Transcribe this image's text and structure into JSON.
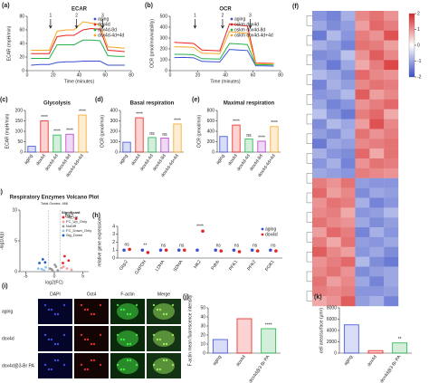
{
  "chart_data": [
    {
      "label": "(a)",
      "type": "line",
      "title": "ECAR",
      "xlabel": "Time (minutes)",
      "ylabel": "ECAR (mpH/min)",
      "x": [
        3,
        10,
        17,
        23,
        30,
        36,
        43,
        49,
        56,
        62,
        69,
        75
      ],
      "xlim": [
        0,
        80
      ],
      "xticks": [
        0,
        20,
        40,
        60,
        80
      ],
      "ylim": [
        0,
        80
      ],
      "yticks": [
        0,
        20,
        40,
        60,
        80
      ],
      "legend": "upper right",
      "annotations": [
        {
          "text": "1",
          "x": 18
        },
        {
          "text": "2",
          "x": 38
        },
        {
          "text": "3",
          "x": 58
        }
      ],
      "series": [
        {
          "name": "aging",
          "color": "#3b4fd6",
          "values": [
            8,
            9,
            9,
            12,
            13,
            13,
            14,
            14,
            14,
            8,
            8,
            8
          ]
        },
        {
          "name": "dox4d",
          "color": "#e8231f",
          "values": [
            25,
            25,
            25,
            50,
            52,
            52,
            60,
            62,
            61,
            30,
            29,
            28
          ]
        },
        {
          "name": "dox4d-8d",
          "color": "#22b14c",
          "values": [
            18,
            18,
            18,
            38,
            38,
            38,
            45,
            45,
            44,
            22,
            21,
            21
          ]
        },
        {
          "name": "dox4d-4d+4d",
          "color": "#f5a623",
          "values": [
            30,
            30,
            30,
            58,
            60,
            60,
            72,
            70,
            68,
            35,
            34,
            33
          ]
        }
      ]
    },
    {
      "label": "(b)",
      "type": "line",
      "title": "OCR",
      "xlabel": "Time (minutes)",
      "ylabel": "OCR (pmol/min/viability)",
      "x": [
        3,
        10,
        17,
        23,
        30,
        36,
        43,
        49,
        56,
        62,
        69,
        75
      ],
      "xlim": [
        0,
        80
      ],
      "xticks": [
        0,
        20,
        40,
        60,
        80
      ],
      "ylim": [
        0,
        500
      ],
      "yticks": [
        0,
        100,
        200,
        300,
        400,
        500
      ],
      "legend": "upper right",
      "annotations": [
        {
          "text": "1",
          "x": 18
        },
        {
          "text": "2",
          "x": 38
        },
        {
          "text": "3",
          "x": 58
        }
      ],
      "series": [
        {
          "name": "aging",
          "color": "#3b4fd6",
          "values": [
            120,
            122,
            118,
            85,
            82,
            80,
            195,
            190,
            185,
            45,
            44,
            42
          ]
        },
        {
          "name": "oskm dox4d",
          "color": "#e8231f",
          "values": [
            260,
            255,
            250,
            190,
            185,
            182,
            430,
            420,
            410,
            70,
            68,
            66
          ]
        },
        {
          "name": "oskm dox4d-8d",
          "color": "#22b14c",
          "values": [
            150,
            150,
            146,
            110,
            108,
            106,
            250,
            246,
            240,
            55,
            54,
            52
          ]
        },
        {
          "name": "oskm dox4d-4d+4d",
          "color": "#f5a623",
          "values": [
            220,
            218,
            215,
            160,
            158,
            155,
            360,
            350,
            345,
            65,
            63,
            62
          ]
        }
      ]
    },
    {
      "label": "(c)",
      "type": "bar",
      "title": "Glycolysis",
      "ylabel": "ECAR (mpH/min)",
      "categories": [
        "aging",
        "dox4d",
        "dox4d-4d",
        "dox4d-8d",
        "dox4d-4d+4d"
      ],
      "values": [
        28,
        150,
        82,
        86,
        178
      ],
      "colors": [
        "#3b4fd6",
        "#e8231f",
        "#22b14c",
        "#b23fc9",
        "#f5a623"
      ],
      "significance": [
        null,
        "****",
        "****",
        "****",
        "****"
      ],
      "ylim": [
        0,
        200
      ],
      "yticks": [
        0,
        50,
        100,
        150,
        200
      ]
    },
    {
      "label": "(d)",
      "type": "bar",
      "title": "Basal respiration",
      "ylabel": "OCR (pmol/min)",
      "categories": [
        "aging",
        "dox4d",
        "dox4d-4d",
        "dox4d-8d",
        "dox4d-4d+4d"
      ],
      "values": [
        95,
        330,
        140,
        135,
        270
      ],
      "colors": [
        "#3b4fd6",
        "#e8231f",
        "#22b14c",
        "#b23fc9",
        "#f5a623"
      ],
      "significance": [
        null,
        "****",
        "ns",
        "ns",
        "****"
      ],
      "ylim": [
        0,
        400
      ],
      "yticks": [
        0,
        100,
        200,
        300,
        400
      ]
    },
    {
      "label": "(e)",
      "type": "bar",
      "title": "Maximal respiration",
      "ylabel": "OCR (pmol/min)",
      "categories": [
        "aging",
        "dox4d",
        "dox4d-4d",
        "dox4d-8d",
        "dox4d-4d+4d"
      ],
      "values": [
        300,
        520,
        250,
        210,
        490
      ],
      "colors": [
        "#3b4fd6",
        "#e8231f",
        "#22b14c",
        "#b23fc9",
        "#f5a623"
      ],
      "significance": [
        null,
        "****",
        "ns",
        "****",
        "****"
      ],
      "ylim": [
        0,
        800
      ],
      "yticks": [
        0,
        200,
        400,
        600,
        800
      ]
    },
    {
      "label": "(f)",
      "type": "heatmap",
      "zlim": [
        -2,
        2
      ],
      "zticks": [
        -2,
        -1,
        0,
        1,
        2
      ],
      "values": [
        [
          -1.2,
          -1.4,
          -0.9,
          1.1,
          1.3,
          1.0
        ],
        [
          -1.0,
          -1.3,
          -1.1,
          0.9,
          1.4,
          1.2
        ],
        [
          -1.5,
          -0.8,
          -1.2,
          1.2,
          1.0,
          1.6
        ],
        [
          -0.9,
          -1.1,
          -1.4,
          1.3,
          1.2,
          0.9
        ],
        [
          -1.3,
          -1.2,
          -0.7,
          1.0,
          1.5,
          1.1
        ],
        [
          -1.1,
          -1.5,
          -1.0,
          0.8,
          1.2,
          1.7
        ],
        [
          -0.8,
          -1.0,
          -1.3,
          1.4,
          1.1,
          1.0
        ],
        [
          -1.4,
          -0.9,
          -1.1,
          1.1,
          1.3,
          1.2
        ],
        [
          -1.2,
          -1.1,
          -0.8,
          1.5,
          0.9,
          1.1
        ],
        [
          -1.0,
          -1.4,
          -1.2,
          1.0,
          1.2,
          1.4
        ],
        [
          -0.7,
          -1.2,
          -1.5,
          1.2,
          1.4,
          0.8
        ],
        [
          -1.3,
          -0.8,
          -1.0,
          0.9,
          1.6,
          1.1
        ],
        [
          -1.1,
          -1.3,
          -0.9,
          1.3,
          1.0,
          1.2
        ],
        [
          -1.5,
          -1.0,
          -1.1,
          1.1,
          1.2,
          1.3
        ],
        [
          -0.9,
          -1.2,
          -1.3,
          1.4,
          0.8,
          1.3
        ],
        [
          -1.2,
          -0.9,
          -1.4,
          1.0,
          1.3,
          1.2
        ],
        [
          -1.0,
          -1.1,
          -1.2,
          1.2,
          1.1,
          1.0
        ],
        [
          1.2,
          1.0,
          1.3,
          -1.1,
          -1.2,
          -1.2
        ],
        [
          1.4,
          0.9,
          1.1,
          -1.3,
          -1.0,
          -1.1
        ],
        [
          1.0,
          1.3,
          1.2,
          -0.9,
          -1.4,
          -1.2
        ],
        [
          1.1,
          1.2,
          0.8,
          -1.2,
          -1.1,
          -0.8
        ],
        [
          1.3,
          1.1,
          1.0,
          -1.0,
          -1.3,
          -1.1
        ],
        [
          0.9,
          1.4,
          1.2,
          -1.4,
          -0.9,
          -1.2
        ],
        [
          1.2,
          0.8,
          1.3,
          -1.1,
          -1.2,
          -1.0
        ],
        [
          1.5,
          1.1,
          0.9,
          -1.2,
          -1.0,
          -1.3
        ],
        [
          1.0,
          1.2,
          1.4,
          -0.8,
          -1.3,
          -1.5
        ],
        [
          1.1,
          1.3,
          1.0,
          -1.3,
          -1.1,
          -1.0
        ],
        [
          1.3,
          0.9,
          1.1,
          -1.0,
          -1.4,
          -1.0
        ],
        [
          1.2,
          1.1,
          1.2,
          -1.2,
          -1.2,
          -1.1
        ],
        [
          0.8,
          1.0,
          1.5,
          -1.1,
          -0.9,
          -1.4
        ]
      ]
    },
    {
      "label": "(g)",
      "type": "scatter",
      "title": "Respiratory Enzymes Volcano Plot",
      "subtitle": "Total Genes: 466",
      "xlabel": "log2(FC)",
      "ylabel": "-log10(p)",
      "xlim": [
        -6,
        6
      ],
      "xticks": [
        -5,
        0,
        5
      ],
      "ylim": [
        0,
        10
      ],
      "yticks": [
        0,
        5,
        10
      ],
      "legend": "upper right",
      "legend_title": "Significant",
      "annotations": [
        {
          "text": "Hk2",
          "x": 3.8,
          "y": 8.6
        }
      ],
      "series": [
        {
          "name": "Sig_Up",
          "color": "#e8231f",
          "x": [
            3.8,
            1.8,
            2.5,
            1.5
          ],
          "values": [
            8.6,
            2.5,
            1.8,
            1.4
          ]
        },
        {
          "name": "FC_Up_Only",
          "color": "#f4a0a0",
          "x": [
            1.6,
            2.2,
            3.0,
            1.3
          ],
          "values": [
            0.8,
            0.5,
            0.3,
            0.6
          ]
        },
        {
          "name": "NoDiff",
          "color": "#999999",
          "x": [
            -0.5,
            0.3,
            0.6,
            -0.8,
            0.1,
            -0.3
          ],
          "values": [
            0.4,
            0.8,
            0.2,
            0.5,
            1.1,
            0.2
          ]
        },
        {
          "name": "FC_Down_Only",
          "color": "#8fc3ea",
          "x": [
            -1.5,
            -2.2,
            -1.8,
            -2.8
          ],
          "values": [
            0.7,
            0.4,
            0.2,
            0.5
          ]
        },
        {
          "name": "Sig_Down",
          "color": "#1f5fbf",
          "x": [
            -1.6,
            -2.0,
            -2.6
          ],
          "values": [
            1.5,
            2.0,
            1.4
          ]
        }
      ]
    },
    {
      "label": "(h)",
      "type": "dot",
      "ylabel": "relative gene expression",
      "categories": [
        "Gbp2",
        "GAPDH",
        "LDHA",
        "SDHA",
        "HK2",
        "Pdhb",
        "PFK1",
        "PFK2",
        "PGK1"
      ],
      "series": [
        {
          "name": "aging",
          "color": "#3b4fd6",
          "values": [
            1,
            1,
            1,
            1,
            1,
            1,
            1,
            1,
            1
          ]
        },
        {
          "name": "dox4d",
          "color": "#e8231f",
          "values": [
            1.1,
            0.7,
            1.0,
            1.0,
            3.4,
            0.9,
            0.8,
            0.9,
            0.9
          ]
        }
      ],
      "significance": [
        "ns",
        "**",
        "ns",
        "ns",
        "****",
        "ns",
        "ns",
        "ns",
        "ns"
      ],
      "ylim": [
        0,
        4
      ],
      "yticks": [
        0,
        1,
        2,
        3,
        4
      ],
      "legend": "upper right"
    },
    {
      "label": "(j)",
      "type": "bar",
      "ylabel": "F-actin mean fluorescence intensity",
      "categories": [
        "aging",
        "dox4d",
        "dox4d@3-Br PA"
      ],
      "values": [
        15,
        38,
        27
      ],
      "colors": [
        "#3b4fd6",
        "#e8231f",
        "#22b14c"
      ],
      "significance": [
        null,
        null,
        "****"
      ],
      "ylim": [
        0,
        50
      ],
      "yticks": [
        0,
        10,
        20,
        30,
        40,
        50
      ]
    },
    {
      "label": "(k)",
      "type": "bar",
      "ylabel": "cell area/surface (μm²)",
      "categories": [
        "aging",
        "dox4d",
        "dox4d@3-Br PA"
      ],
      "values": [
        5000,
        450,
        1800
      ],
      "colors": [
        "#3b4fd6",
        "#e8231f",
        "#22b14c"
      ],
      "significance": [
        null,
        null,
        "**"
      ],
      "ylim": [
        0,
        8000
      ],
      "yticks": [
        0,
        2000,
        4000,
        6000,
        8000
      ]
    }
  ],
  "image_panel": {
    "label": "(i)",
    "columns": [
      "DAPI",
      "Oct4",
      "F-actin",
      "Merge"
    ],
    "rows": [
      "aging",
      "dox4d",
      "dox4d@3-Br PA"
    ]
  }
}
